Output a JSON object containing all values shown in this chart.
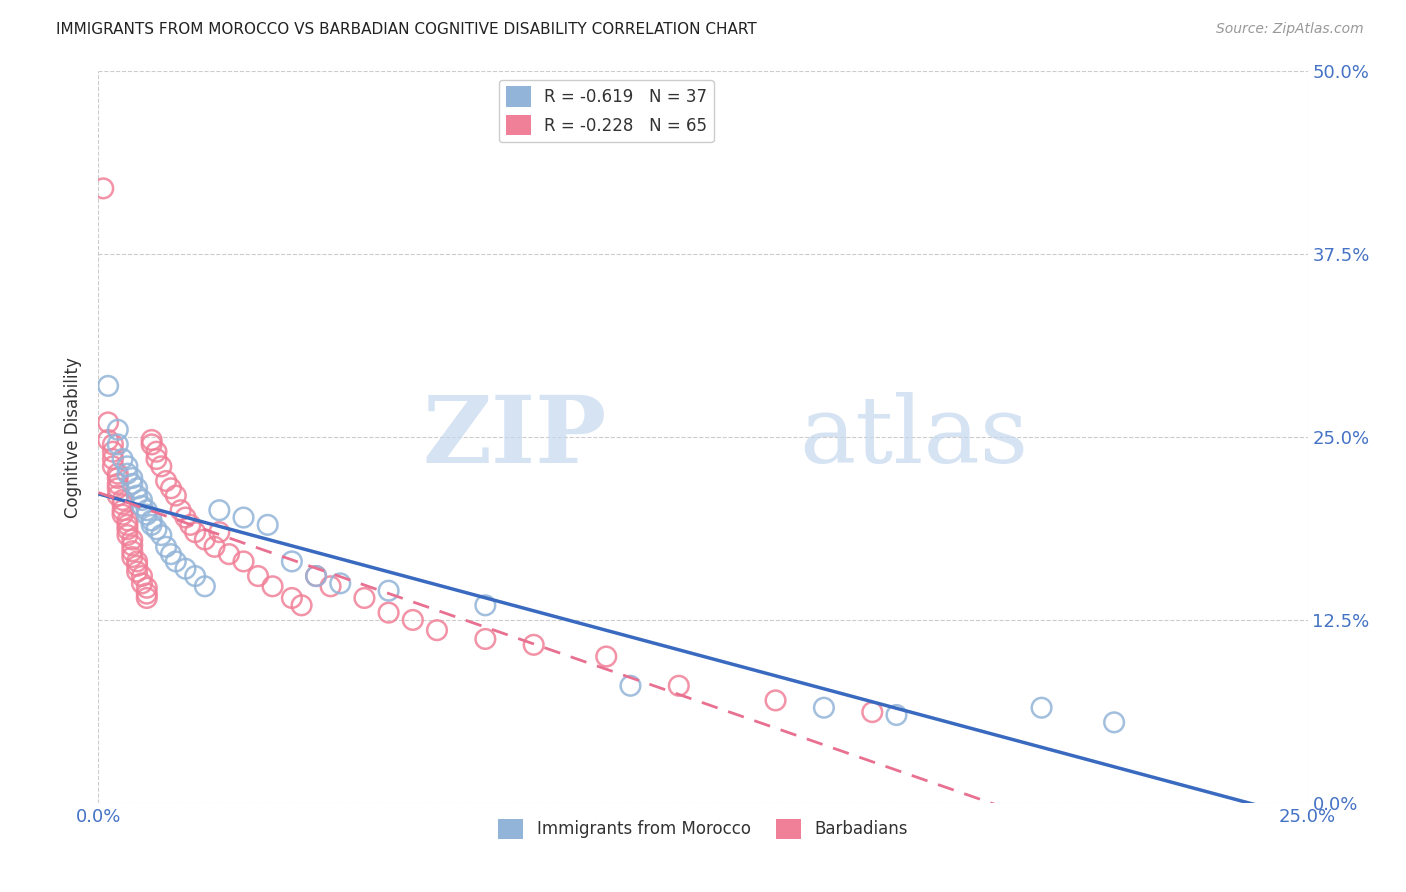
{
  "title": "IMMIGRANTS FROM MOROCCO VS BARBADIAN COGNITIVE DISABILITY CORRELATION CHART",
  "source": "Source: ZipAtlas.com",
  "ylabel": "Cognitive Disability",
  "xlim": [
    0.0,
    0.25
  ],
  "ylim": [
    0.0,
    0.5
  ],
  "xtick_labels": [
    "0.0%",
    "25.0%"
  ],
  "ytick_labels": [
    "0.0%",
    "12.5%",
    "25.0%",
    "37.5%",
    "50.0%"
  ],
  "ytick_values": [
    0.0,
    0.125,
    0.25,
    0.375,
    0.5
  ],
  "xtick_values": [
    0.0,
    0.25
  ],
  "morocco_color": "#92b4d8",
  "barbadian_color": "#f08098",
  "morocco_line_color": "#3a6abf",
  "barbadian_line_color": "#e87090",
  "legend_morocco_label": "R = -0.619   N = 37",
  "legend_barbadian_label": "R = -0.228   N = 65",
  "watermark_zip": "ZIP",
  "watermark_atlas": "atlas",
  "background_color": "#ffffff",
  "grid_color": "#cccccc",
  "tick_label_color": "#4472c4",
  "morocco_points": [
    [
      0.002,
      0.285
    ],
    [
      0.004,
      0.255
    ],
    [
      0.004,
      0.245
    ],
    [
      0.005,
      0.235
    ],
    [
      0.006,
      0.23
    ],
    [
      0.006,
      0.225
    ],
    [
      0.007,
      0.222
    ],
    [
      0.007,
      0.218
    ],
    [
      0.008,
      0.215
    ],
    [
      0.008,
      0.21
    ],
    [
      0.009,
      0.207
    ],
    [
      0.009,
      0.203
    ],
    [
      0.01,
      0.2
    ],
    [
      0.01,
      0.197
    ],
    [
      0.011,
      0.193
    ],
    [
      0.011,
      0.19
    ],
    [
      0.012,
      0.187
    ],
    [
      0.013,
      0.183
    ],
    [
      0.014,
      0.175
    ],
    [
      0.015,
      0.17
    ],
    [
      0.016,
      0.165
    ],
    [
      0.018,
      0.16
    ],
    [
      0.02,
      0.155
    ],
    [
      0.022,
      0.148
    ],
    [
      0.025,
      0.2
    ],
    [
      0.03,
      0.195
    ],
    [
      0.035,
      0.19
    ],
    [
      0.04,
      0.165
    ],
    [
      0.045,
      0.155
    ],
    [
      0.05,
      0.15
    ],
    [
      0.06,
      0.145
    ],
    [
      0.08,
      0.135
    ],
    [
      0.11,
      0.08
    ],
    [
      0.15,
      0.065
    ],
    [
      0.165,
      0.06
    ],
    [
      0.195,
      0.065
    ],
    [
      0.21,
      0.055
    ]
  ],
  "barbadian_points": [
    [
      0.001,
      0.42
    ],
    [
      0.002,
      0.26
    ],
    [
      0.002,
      0.248
    ],
    [
      0.003,
      0.245
    ],
    [
      0.003,
      0.24
    ],
    [
      0.003,
      0.235
    ],
    [
      0.003,
      0.23
    ],
    [
      0.004,
      0.225
    ],
    [
      0.004,
      0.222
    ],
    [
      0.004,
      0.218
    ],
    [
      0.004,
      0.215
    ],
    [
      0.004,
      0.21
    ],
    [
      0.005,
      0.207
    ],
    [
      0.005,
      0.204
    ],
    [
      0.005,
      0.2
    ],
    [
      0.005,
      0.197
    ],
    [
      0.006,
      0.193
    ],
    [
      0.006,
      0.19
    ],
    [
      0.006,
      0.187
    ],
    [
      0.006,
      0.183
    ],
    [
      0.007,
      0.18
    ],
    [
      0.007,
      0.176
    ],
    [
      0.007,
      0.172
    ],
    [
      0.007,
      0.168
    ],
    [
      0.008,
      0.165
    ],
    [
      0.008,
      0.162
    ],
    [
      0.008,
      0.158
    ],
    [
      0.009,
      0.155
    ],
    [
      0.009,
      0.15
    ],
    [
      0.01,
      0.147
    ],
    [
      0.01,
      0.143
    ],
    [
      0.01,
      0.14
    ],
    [
      0.011,
      0.248
    ],
    [
      0.011,
      0.245
    ],
    [
      0.012,
      0.24
    ],
    [
      0.012,
      0.235
    ],
    [
      0.013,
      0.23
    ],
    [
      0.014,
      0.22
    ],
    [
      0.015,
      0.215
    ],
    [
      0.016,
      0.21
    ],
    [
      0.017,
      0.2
    ],
    [
      0.018,
      0.195
    ],
    [
      0.019,
      0.19
    ],
    [
      0.02,
      0.185
    ],
    [
      0.022,
      0.18
    ],
    [
      0.024,
      0.175
    ],
    [
      0.025,
      0.185
    ],
    [
      0.027,
      0.17
    ],
    [
      0.03,
      0.165
    ],
    [
      0.033,
      0.155
    ],
    [
      0.036,
      0.148
    ],
    [
      0.04,
      0.14
    ],
    [
      0.042,
      0.135
    ],
    [
      0.045,
      0.155
    ],
    [
      0.048,
      0.148
    ],
    [
      0.055,
      0.14
    ],
    [
      0.06,
      0.13
    ],
    [
      0.065,
      0.125
    ],
    [
      0.07,
      0.118
    ],
    [
      0.08,
      0.112
    ],
    [
      0.09,
      0.108
    ],
    [
      0.105,
      0.1
    ],
    [
      0.12,
      0.08
    ],
    [
      0.14,
      0.07
    ],
    [
      0.16,
      0.062
    ]
  ]
}
